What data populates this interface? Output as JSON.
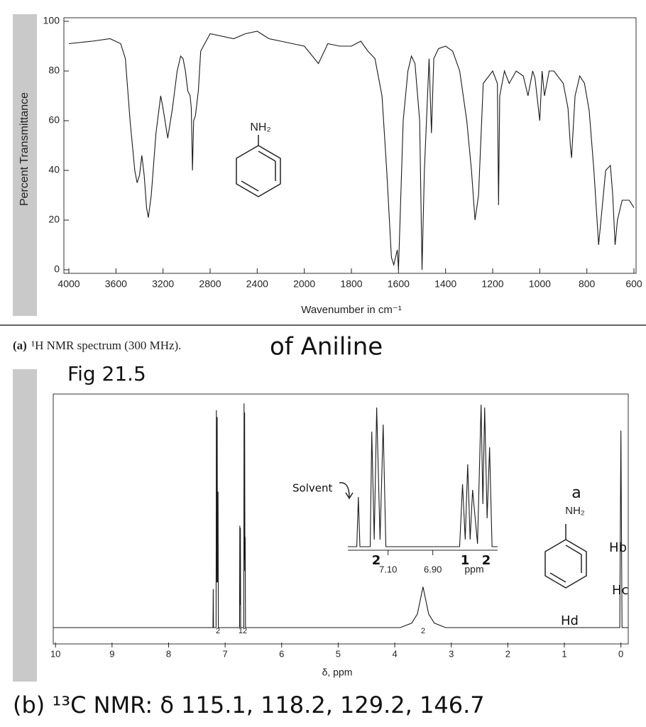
{
  "header": {
    "caption_label": "(a)",
    "caption": "¹H NMR spectrum (300 MHz).",
    "handwritten_title": "of Aniline",
    "figure": "Fig 21.5"
  },
  "chart_data": [
    {
      "type": "line",
      "y_label": "Percent Transmittance",
      "x_label": "Wavenumber in cm⁻¹",
      "structure_label": "NH₂",
      "color": "#1a1a1a",
      "x": [
        4000,
        3800,
        3650,
        3560,
        3520,
        3480,
        3440,
        3420,
        3400,
        3380,
        3360,
        3340,
        3325,
        3300,
        3260,
        3220,
        3200,
        3160,
        3120,
        3080,
        3050,
        3030,
        3010,
        2990,
        2970,
        2960,
        2950,
        2940,
        2925,
        2900,
        2880,
        2800,
        2600,
        2500,
        2400,
        2300,
        2200,
        2100,
        2000,
        1940,
        1900,
        1850,
        1800,
        1760,
        1730,
        1700,
        1670,
        1650,
        1630,
        1620,
        1605,
        1600,
        1580,
        1560,
        1545,
        1530,
        1510,
        1500,
        1490,
        1470,
        1460,
        1450,
        1430,
        1400,
        1370,
        1340,
        1310,
        1290,
        1275,
        1260,
        1240,
        1200,
        1180,
        1175,
        1170,
        1150,
        1130,
        1100,
        1070,
        1050,
        1030,
        1020,
        1000,
        990,
        980,
        960,
        940,
        900,
        880,
        870,
        865,
        850,
        830,
        810,
        790,
        770,
        750,
        735,
        720,
        700,
        690,
        680,
        670,
        650,
        620,
        600
      ],
      "values": [
        91,
        92,
        93,
        91,
        85,
        60,
        40,
        35,
        38,
        46,
        38,
        25,
        21,
        30,
        55,
        70,
        65,
        53,
        65,
        80,
        86,
        85,
        80,
        72,
        70,
        65,
        40,
        60,
        62,
        72,
        88,
        95,
        93,
        95,
        96,
        93,
        92,
        91,
        90,
        83,
        91,
        90,
        90,
        92,
        88,
        85,
        70,
        40,
        5,
        2,
        8,
        0,
        60,
        80,
        86,
        83,
        60,
        0,
        40,
        85,
        55,
        85,
        89,
        90,
        88,
        80,
        60,
        40,
        20,
        30,
        75,
        80,
        75,
        26,
        70,
        80,
        75,
        80,
        78,
        70,
        80,
        77,
        60,
        80,
        70,
        80,
        80,
        75,
        65,
        50,
        45,
        70,
        78,
        75,
        64,
        40,
        10,
        25,
        40,
        42,
        30,
        10,
        20,
        28,
        28,
        25
      ],
      "xlim": [
        4000,
        600
      ],
      "ylim": [
        0,
        100
      ],
      "xticks": [
        4000,
        3600,
        3200,
        2800,
        2400,
        2000,
        1800,
        1600,
        1400,
        1200,
        1000,
        800,
        600
      ],
      "yticks": [
        0,
        20,
        40,
        60,
        80,
        100
      ]
    },
    {
      "type": "line",
      "x_label": "δ, ppm",
      "color": "#1a1a1a",
      "annotations": [
        "2",
        "12",
        "2"
      ],
      "structure_labels": [
        "a",
        "NH₂",
        "Hb",
        "Hc",
        "Hd"
      ],
      "x": [
        10.04,
        7.3,
        7.215,
        7.21,
        7.205,
        7.16,
        7.155,
        7.15,
        7.14,
        7.135,
        7.125,
        7.12,
        6.78,
        6.745,
        6.74,
        6.735,
        6.73,
        6.725,
        6.67,
        6.665,
        6.66,
        6.655,
        6.65,
        6.645,
        6.64,
        3.9,
        3.7,
        3.6,
        3.55,
        3.5,
        3.45,
        3.4,
        3.3,
        3.1,
        0.02,
        0.0,
        -0.02,
        -0.13
      ],
      "values": [
        0,
        0,
        0,
        17,
        0,
        0,
        96,
        20,
        93,
        20,
        60,
        0,
        0,
        0,
        45,
        10,
        44,
        0,
        0,
        99,
        25,
        95,
        30,
        40,
        0,
        0,
        2,
        6,
        12,
        18,
        12,
        6,
        2,
        0,
        0,
        87,
        0,
        0
      ],
      "xlim": [
        10.04,
        -0.13
      ],
      "ylim": [
        0,
        100
      ],
      "xticks": [
        10,
        9,
        8,
        7,
        6,
        5,
        4,
        3,
        2,
        1,
        0
      ]
    },
    {
      "type": "line",
      "x_label": "ppm",
      "color": "#1a1a1a",
      "annotations": [
        "Solvent",
        "2",
        "1",
        "2"
      ],
      "x": [
        7.28,
        7.24,
        7.233,
        7.226,
        7.18,
        7.173,
        7.162,
        7.151,
        7.136,
        7.122,
        7.11,
        6.78,
        6.767,
        6.755,
        6.744,
        6.733,
        6.722,
        6.7,
        6.684,
        6.676,
        6.668,
        6.657,
        6.646,
        6.635,
        6.61
      ],
      "values": [
        0,
        0,
        35,
        0,
        0,
        81,
        5,
        98,
        5,
        86,
        0,
        0,
        44,
        5,
        58,
        5,
        40,
        2,
        100,
        30,
        98,
        20,
        70,
        0,
        0
      ],
      "xlim": [
        7.28,
        6.61
      ],
      "ylim": [
        0,
        100
      ],
      "xticks": [
        {
          "value": 7.1,
          "label": "7.10"
        },
        {
          "value": 6.9,
          "label": "6.90"
        }
      ]
    }
  ],
  "footer": {
    "text": "(b) ¹³C NMR: δ 115.1, 118.2, 129.2, 146.7"
  }
}
